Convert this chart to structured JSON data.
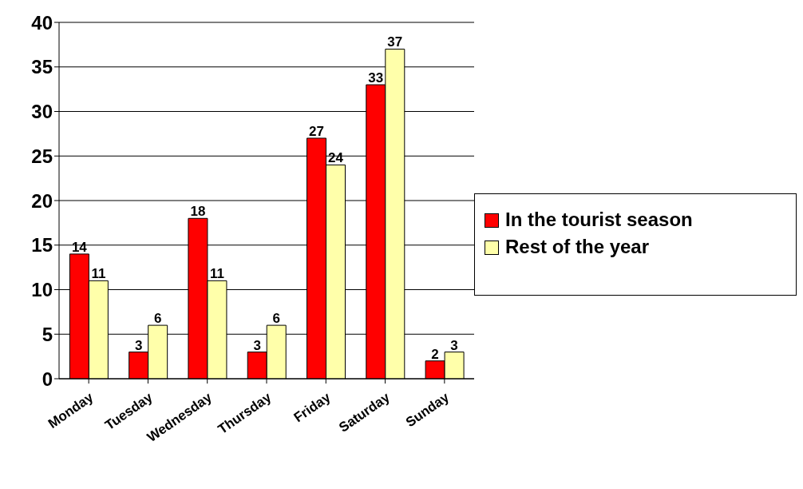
{
  "chart_data": {
    "type": "bar",
    "categories": [
      "Monday",
      "Tuesday",
      "Wednesday",
      "Thursday",
      "Friday",
      "Saturday",
      "Sunday"
    ],
    "series": [
      {
        "name": "In the tourist season",
        "color": "#ff0000",
        "values": [
          14,
          3,
          18,
          3,
          27,
          33,
          2
        ]
      },
      {
        "name": "Rest of the year",
        "color": "#ffffaa",
        "values": [
          11,
          6,
          11,
          6,
          24,
          37,
          3
        ]
      }
    ],
    "ylim": [
      0,
      40
    ],
    "yticks": [
      0,
      5,
      10,
      15,
      20,
      25,
      30,
      35,
      40
    ],
    "grid": "y",
    "legend": "right",
    "data_labels": true
  }
}
